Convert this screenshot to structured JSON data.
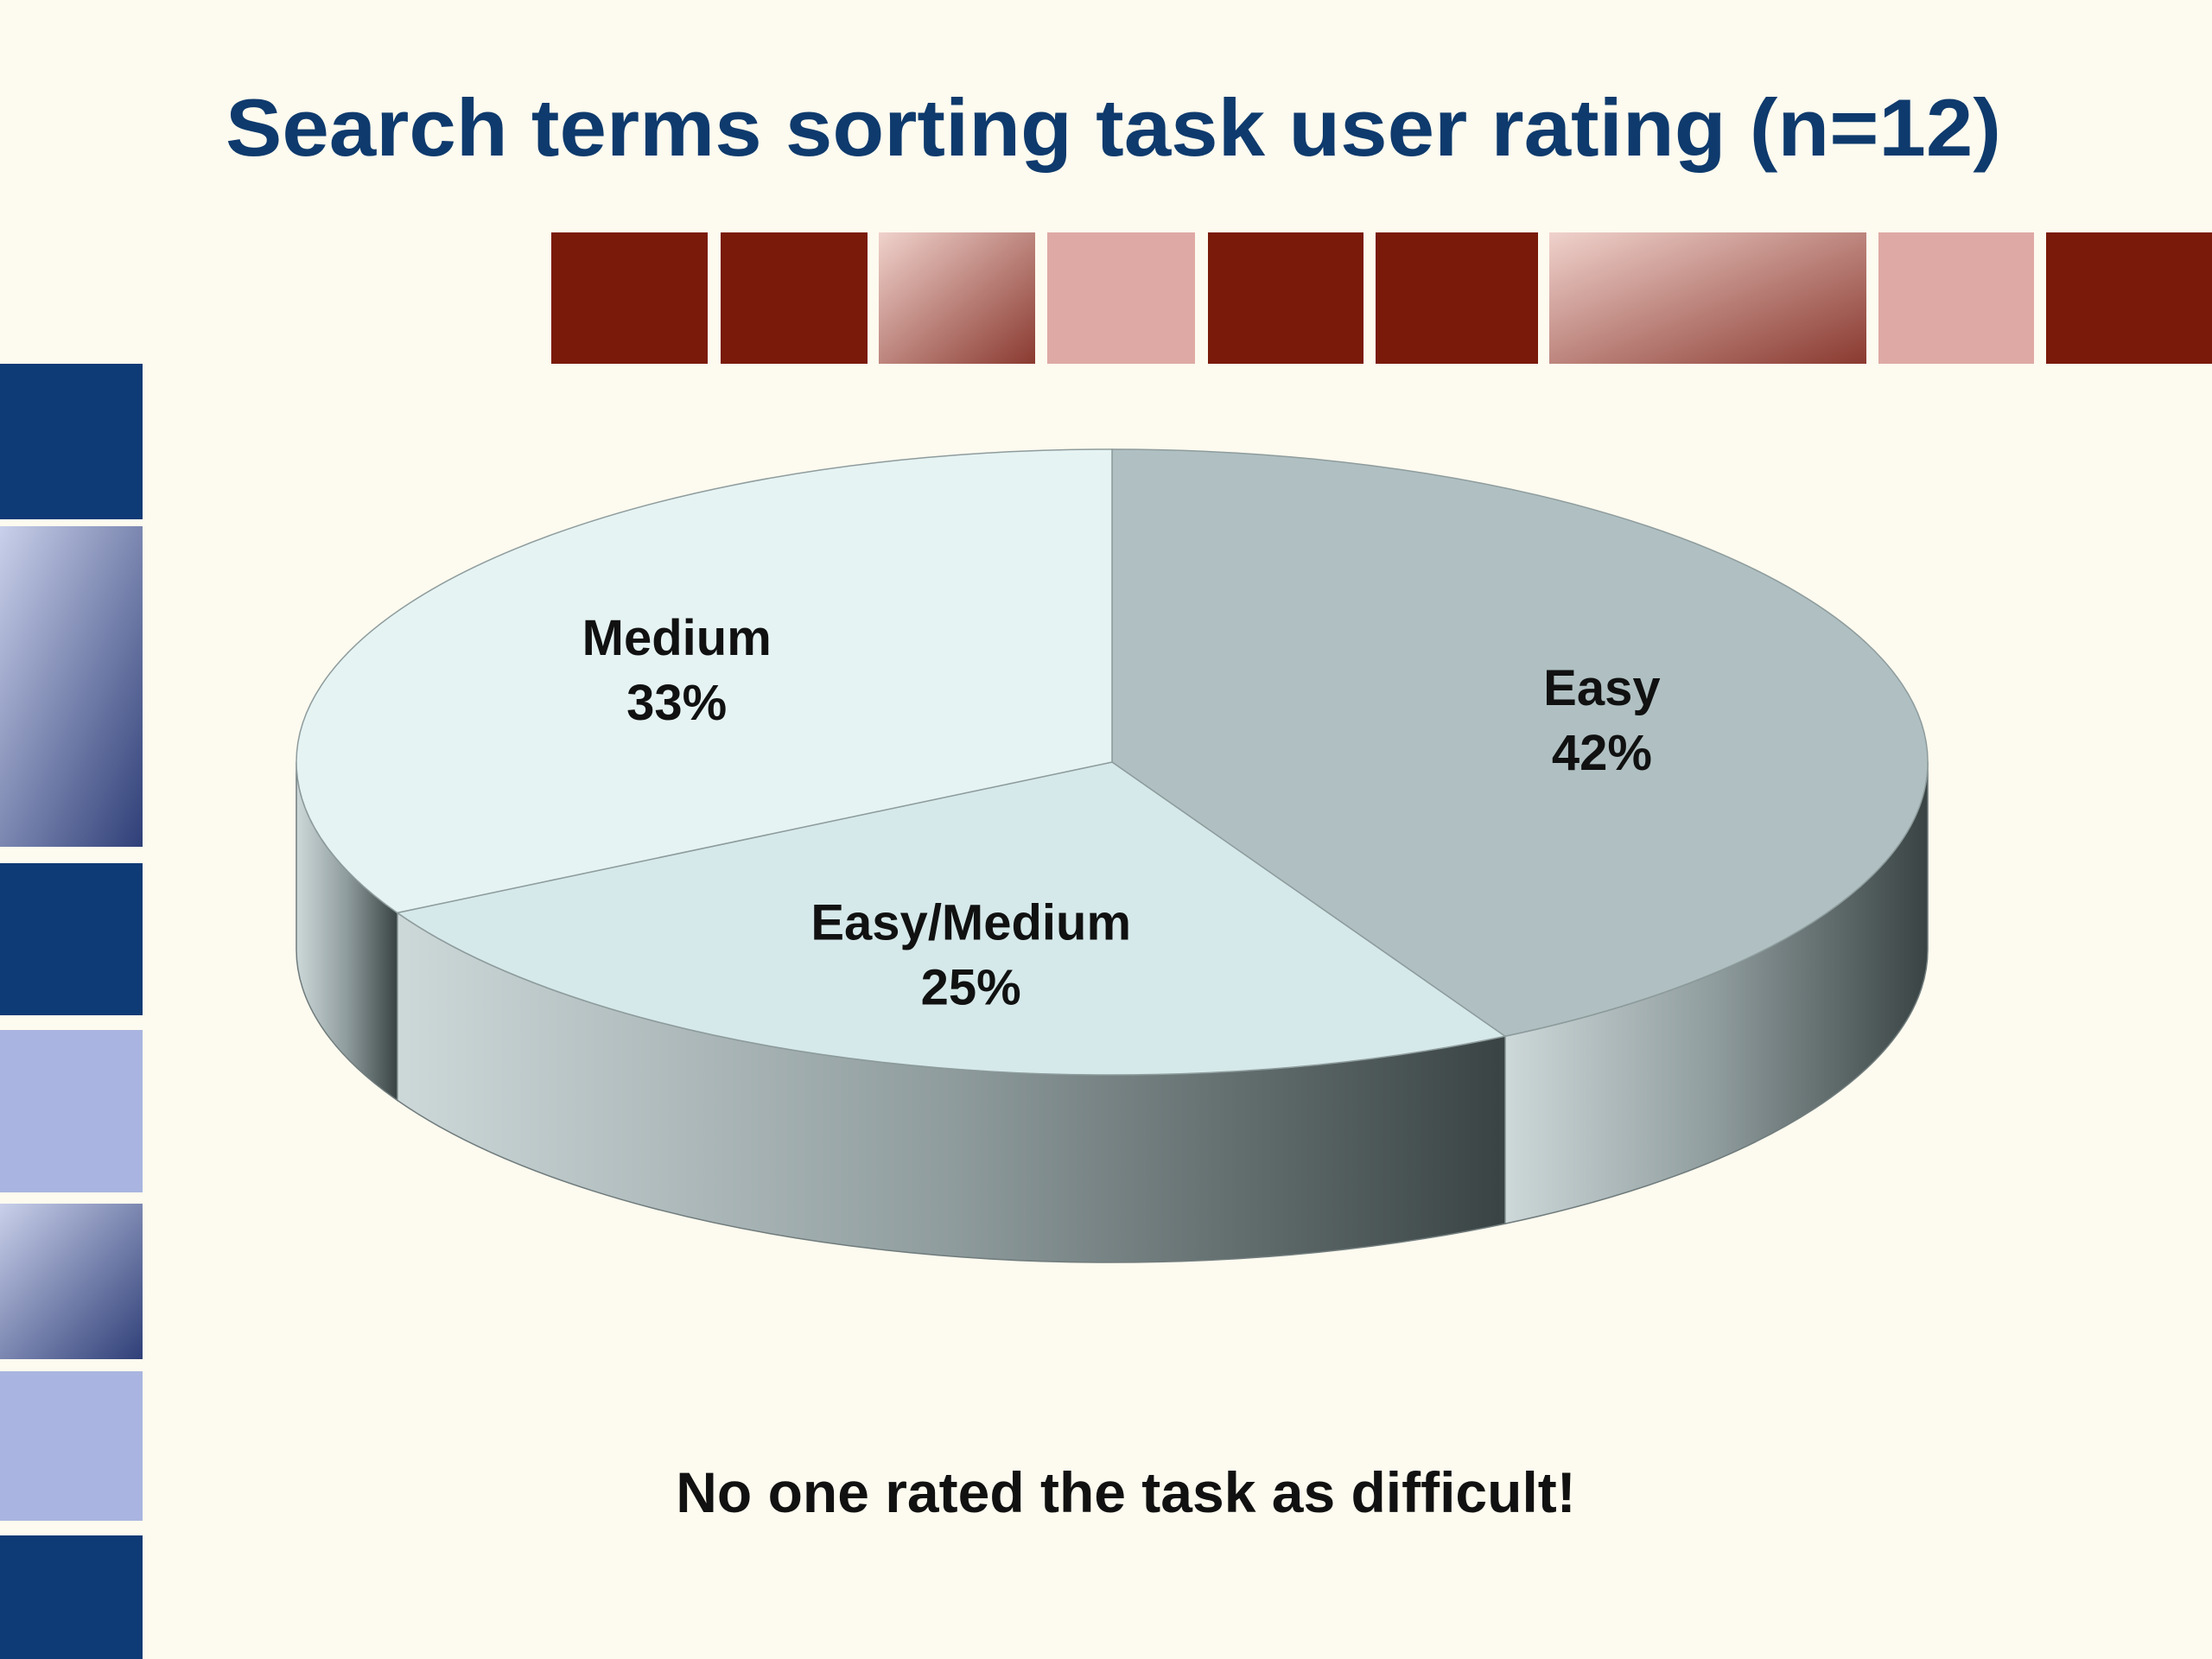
{
  "chart_data": {
    "type": "pie",
    "title": "Search terms sorting task user rating (n=12)",
    "categories": [
      "Easy",
      "Easy/Medium",
      "Medium"
    ],
    "values": [
      42,
      25,
      33
    ],
    "value_labels": [
      "42%",
      "25%",
      "33%"
    ],
    "colors": [
      "#b0c0c2",
      "#d6e9ea",
      "#e6f3f3"
    ],
    "annotation": "No one rated the task as difficult!"
  }
}
